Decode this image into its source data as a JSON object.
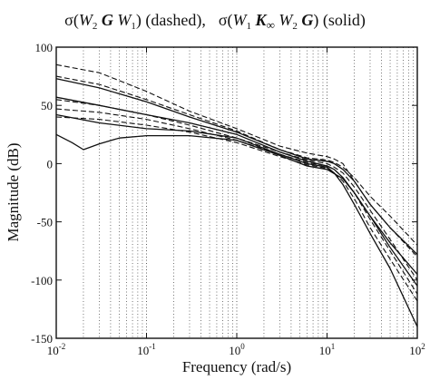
{
  "chart_data": {
    "type": "line",
    "title": {
      "part1_sigma": "σ(",
      "part1_W2": "W",
      "part1_W2_sub": "2",
      "part1_G": " G ",
      "part1_W1": "W",
      "part1_W1_sub": "1",
      "part1_close": ")",
      "part1_style": " (dashed),",
      "part2_sigma": "σ(",
      "part2_W1": "W",
      "part2_W1_sub": "1",
      "part2_K": " K",
      "part2_K_sub": "∞",
      "part2_W2": " W",
      "part2_W2_sub": "2",
      "part2_G": " G",
      "part2_close": ")",
      "part2_style": " (solid)"
    },
    "xlabel": "Frequency (rad/s)",
    "ylabel": "Magnitude (dB)",
    "x_scale": "log",
    "xlim": [
      0.01,
      100
    ],
    "ylim": [
      -150,
      100
    ],
    "x_ticks": [
      {
        "base": "10",
        "exp": "-2",
        "value": 0.01
      },
      {
        "base": "10",
        "exp": "-1",
        "value": 0.1
      },
      {
        "base": "10",
        "exp": "0",
        "value": 1
      },
      {
        "base": "10",
        "exp": "1",
        "value": 10
      },
      {
        "base": "10",
        "exp": "2",
        "value": 100
      }
    ],
    "y_ticks": [
      "100",
      "50",
      "0",
      "-50",
      "-100",
      "-150"
    ],
    "y_tick_values": [
      100,
      50,
      0,
      -50,
      -100,
      -150
    ],
    "grid": "dotted vertical lines at every decade subdivision",
    "series": [
      {
        "style": "dashed",
        "x": [
          0.01,
          0.03,
          0.1,
          0.3,
          1,
          3,
          6,
          10,
          12,
          15,
          20,
          30,
          50,
          100
        ],
        "y": [
          85,
          78,
          62,
          45,
          30,
          15,
          9,
          6,
          4,
          0,
          -15,
          -35,
          -55,
          -80
        ]
      },
      {
        "style": "dashed",
        "x": [
          0.01,
          0.03,
          0.1,
          0.3,
          1,
          3,
          6,
          10,
          12,
          15,
          20,
          30,
          50,
          100
        ],
        "y": [
          75,
          68,
          55,
          42,
          28,
          12,
          5,
          3,
          1,
          -3,
          -12,
          -28,
          -45,
          -70
        ]
      },
      {
        "style": "dashed",
        "x": [
          0.01,
          0.03,
          0.1,
          0.3,
          1,
          3,
          6,
          10,
          12,
          15,
          20,
          30,
          50,
          100
        ],
        "y": [
          55,
          50,
          42,
          33,
          22,
          10,
          3,
          0,
          -3,
          -8,
          -20,
          -40,
          -65,
          -100
        ]
      },
      {
        "style": "dashed",
        "x": [
          0.01,
          0.03,
          0.1,
          0.3,
          1,
          3,
          6,
          10,
          12,
          15,
          20,
          30,
          50,
          100
        ],
        "y": [
          47,
          44,
          38,
          30,
          20,
          8,
          1,
          -2,
          -5,
          -12,
          -25,
          -48,
          -75,
          -112
        ]
      },
      {
        "style": "dashed",
        "x": [
          0.01,
          0.03,
          0.1,
          0.3,
          1,
          3,
          6,
          10,
          12,
          15,
          20,
          30,
          50,
          100
        ],
        "y": [
          40,
          38,
          33,
          27,
          18,
          6,
          -1,
          -4,
          -8,
          -15,
          -30,
          -55,
          -82,
          -118
        ]
      },
      {
        "style": "solid",
        "x": [
          0.01,
          0.03,
          0.1,
          0.3,
          1,
          3,
          6,
          10,
          12,
          15,
          20,
          30,
          50,
          100
        ],
        "y": [
          73,
          65,
          53,
          40,
          27,
          12,
          4,
          2,
          0,
          -5,
          -15,
          -35,
          -55,
          -78
        ]
      },
      {
        "style": "solid",
        "x": [
          0.01,
          0.03,
          0.1,
          0.3,
          1,
          3,
          6,
          10,
          12,
          15,
          20,
          30,
          50,
          100
        ],
        "y": [
          57,
          50,
          42,
          35,
          25,
          10,
          2,
          -2,
          -5,
          -12,
          -25,
          -45,
          -68,
          -95
        ]
      },
      {
        "style": "solid",
        "x": [
          0.01,
          0.03,
          0.1,
          0.3,
          1,
          3,
          6,
          10,
          12,
          15,
          20,
          30,
          50,
          100
        ],
        "y": [
          42,
          35,
          30,
          28,
          22,
          8,
          0,
          -3,
          -8,
          -18,
          -35,
          -60,
          -90,
          -140
        ]
      },
      {
        "style": "solid",
        "x": [
          0.01,
          0.015,
          0.02,
          0.03,
          0.05,
          0.1,
          0.3,
          1,
          3,
          6,
          10,
          15,
          20,
          30,
          50,
          100
        ],
        "y": [
          25,
          18,
          12,
          17,
          22,
          24,
          24,
          20,
          7,
          -2,
          -5,
          -13,
          -25,
          -45,
          -72,
          -105
        ]
      }
    ]
  }
}
